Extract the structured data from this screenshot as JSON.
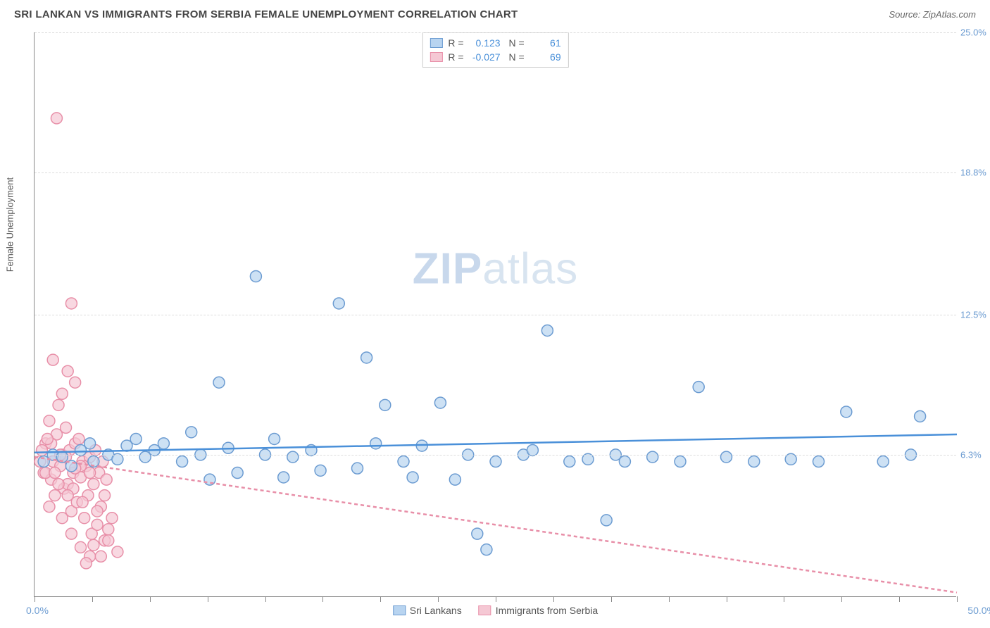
{
  "header": {
    "title": "SRI LANKAN VS IMMIGRANTS FROM SERBIA FEMALE UNEMPLOYMENT CORRELATION CHART",
    "source": "Source: ZipAtlas.com"
  },
  "chart": {
    "type": "scatter",
    "y_label": "Female Unemployment",
    "xlim": [
      0,
      50
    ],
    "ylim": [
      0,
      25
    ],
    "x_tick_labels": {
      "min": "0.0%",
      "max": "50.0%"
    },
    "x_tick_positions": [
      0,
      3.125,
      6.25,
      9.375,
      12.5,
      15.625,
      18.75,
      21.875,
      25,
      28.125,
      31.25,
      34.375,
      37.5,
      40.625,
      43.75,
      46.875,
      50
    ],
    "y_ticks": [
      {
        "value": 6.3,
        "label": "6.3%"
      },
      {
        "value": 12.5,
        "label": "12.5%"
      },
      {
        "value": 18.8,
        "label": "18.8%"
      },
      {
        "value": 25.0,
        "label": "25.0%"
      }
    ],
    "grid_color": "#dddddd",
    "background_color": "#ffffff",
    "marker_radius": 8,
    "marker_stroke_width": 1.5,
    "trend_line_width": 2.5,
    "watermark": "ZIPatlas",
    "series": [
      {
        "name": "Sri Lankans",
        "color_fill": "#b8d4f0",
        "color_stroke": "#6b9bd1",
        "trend_color": "#4a90d9",
        "trend_dash": "none",
        "stats": {
          "R": "0.123",
          "N": "61"
        },
        "trend_line": {
          "x1": 0,
          "y1": 6.4,
          "x2": 50,
          "y2": 7.2
        },
        "points": [
          [
            0.5,
            6.0
          ],
          [
            1.0,
            6.3
          ],
          [
            1.5,
            6.2
          ],
          [
            2.0,
            5.8
          ],
          [
            2.5,
            6.5
          ],
          [
            3.0,
            6.8
          ],
          [
            3.2,
            6.0
          ],
          [
            4.0,
            6.3
          ],
          [
            4.5,
            6.1
          ],
          [
            5.0,
            6.7
          ],
          [
            5.5,
            7.0
          ],
          [
            6.0,
            6.2
          ],
          [
            6.5,
            6.5
          ],
          [
            7.0,
            6.8
          ],
          [
            8.0,
            6.0
          ],
          [
            8.5,
            7.3
          ],
          [
            9.0,
            6.3
          ],
          [
            9.5,
            5.2
          ],
          [
            10.0,
            9.5
          ],
          [
            10.5,
            6.6
          ],
          [
            11.0,
            5.5
          ],
          [
            12.0,
            14.2
          ],
          [
            12.5,
            6.3
          ],
          [
            13.0,
            7.0
          ],
          [
            13.5,
            5.3
          ],
          [
            14.0,
            6.2
          ],
          [
            15.0,
            6.5
          ],
          [
            15.5,
            5.6
          ],
          [
            16.5,
            13.0
          ],
          [
            17.5,
            5.7
          ],
          [
            18.0,
            10.6
          ],
          [
            18.5,
            6.8
          ],
          [
            19.0,
            8.5
          ],
          [
            20.0,
            6.0
          ],
          [
            20.5,
            5.3
          ],
          [
            21.0,
            6.7
          ],
          [
            22.0,
            8.6
          ],
          [
            22.8,
            5.2
          ],
          [
            23.5,
            6.3
          ],
          [
            24.0,
            2.8
          ],
          [
            24.5,
            2.1
          ],
          [
            25.0,
            6.0
          ],
          [
            26.5,
            6.3
          ],
          [
            27.0,
            6.5
          ],
          [
            27.8,
            11.8
          ],
          [
            29.0,
            6.0
          ],
          [
            30.0,
            6.1
          ],
          [
            31.0,
            3.4
          ],
          [
            31.5,
            6.3
          ],
          [
            32.0,
            6.0
          ],
          [
            33.5,
            6.2
          ],
          [
            35.0,
            6.0
          ],
          [
            36.0,
            9.3
          ],
          [
            37.5,
            6.2
          ],
          [
            39.0,
            6.0
          ],
          [
            41.0,
            6.1
          ],
          [
            42.5,
            6.0
          ],
          [
            44.0,
            8.2
          ],
          [
            46.0,
            6.0
          ],
          [
            47.5,
            6.3
          ],
          [
            48.0,
            8.0
          ]
        ]
      },
      {
        "name": "Immigants from Serbia",
        "legend_label": "Immigrants from Serbia",
        "color_fill": "#f5c8d4",
        "color_stroke": "#e88fa8",
        "trend_color": "#e88fa8",
        "trend_dash": "5,4",
        "stats": {
          "R": "-0.027",
          "N": "69"
        },
        "trend_line": {
          "x1": 0,
          "y1": 6.2,
          "x2": 50,
          "y2": 0.2
        },
        "points": [
          [
            0.3,
            6.0
          ],
          [
            0.5,
            5.5
          ],
          [
            0.6,
            6.8
          ],
          [
            0.8,
            7.8
          ],
          [
            0.9,
            5.2
          ],
          [
            1.0,
            6.0
          ],
          [
            1.1,
            4.5
          ],
          [
            1.2,
            7.2
          ],
          [
            1.3,
            8.5
          ],
          [
            1.4,
            5.8
          ],
          [
            1.5,
            6.3
          ],
          [
            1.6,
            4.8
          ],
          [
            1.7,
            7.5
          ],
          [
            1.8,
            5.0
          ],
          [
            1.9,
            6.5
          ],
          [
            2.0,
            3.8
          ],
          [
            2.1,
            5.5
          ],
          [
            2.2,
            6.8
          ],
          [
            2.3,
            4.2
          ],
          [
            2.4,
            7.0
          ],
          [
            2.5,
            5.3
          ],
          [
            2.6,
            6.0
          ],
          [
            2.7,
            3.5
          ],
          [
            2.8,
            5.8
          ],
          [
            2.9,
            4.5
          ],
          [
            3.0,
            6.2
          ],
          [
            3.1,
            2.8
          ],
          [
            3.2,
            5.0
          ],
          [
            3.3,
            6.5
          ],
          [
            3.4,
            3.2
          ],
          [
            3.5,
            5.5
          ],
          [
            3.6,
            4.0
          ],
          [
            3.7,
            6.0
          ],
          [
            3.8,
            2.5
          ],
          [
            3.9,
            5.2
          ],
          [
            4.0,
            3.0
          ],
          [
            1.5,
            9.0
          ],
          [
            1.8,
            10.0
          ],
          [
            2.2,
            9.5
          ],
          [
            1.0,
            10.5
          ],
          [
            2.0,
            13.0
          ],
          [
            1.2,
            21.2
          ],
          [
            0.8,
            4.0
          ],
          [
            1.5,
            3.5
          ],
          [
            2.0,
            2.8
          ],
          [
            2.5,
            2.2
          ],
          [
            3.0,
            1.8
          ],
          [
            0.6,
            5.5
          ],
          [
            0.9,
            6.8
          ],
          [
            1.3,
            5.0
          ],
          [
            1.7,
            6.2
          ],
          [
            2.1,
            4.8
          ],
          [
            2.5,
            5.8
          ],
          [
            0.4,
            6.5
          ],
          [
            0.7,
            7.0
          ],
          [
            1.1,
            5.5
          ],
          [
            1.4,
            6.3
          ],
          [
            1.8,
            4.5
          ],
          [
            2.2,
            5.7
          ],
          [
            2.6,
            4.2
          ],
          [
            3.0,
            5.5
          ],
          [
            3.4,
            3.8
          ],
          [
            3.8,
            4.5
          ],
          [
            4.2,
            3.5
          ],
          [
            4.5,
            2.0
          ],
          [
            2.8,
            1.5
          ],
          [
            3.2,
            2.3
          ],
          [
            3.6,
            1.8
          ],
          [
            4.0,
            2.5
          ]
        ]
      }
    ]
  }
}
